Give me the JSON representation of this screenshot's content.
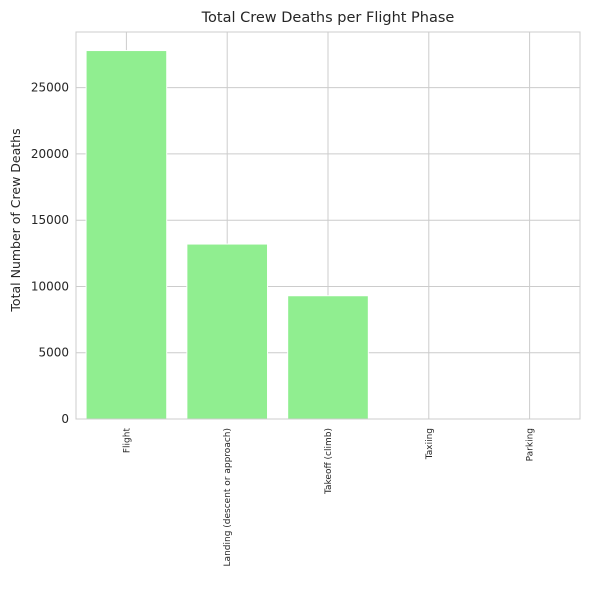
{
  "chart_data": {
    "type": "bar",
    "title": "Total Crew Deaths per Flight Phase",
    "xlabel": "",
    "ylabel": "Total Number of Crew Deaths",
    "categories": [
      "Flight",
      "Landing (descent or approach)",
      "Takeoff (climb)",
      "Taxiing",
      "Parking"
    ],
    "values": [
      27800,
      13200,
      9300,
      0,
      0
    ],
    "ylim": [
      0,
      29200
    ],
    "yticks": [
      0,
      5000,
      10000,
      15000,
      20000,
      25000
    ],
    "grid": true,
    "bar_color": "#90ee90",
    "grid_color": "#cccccc",
    "axis_color": "#cccccc"
  }
}
